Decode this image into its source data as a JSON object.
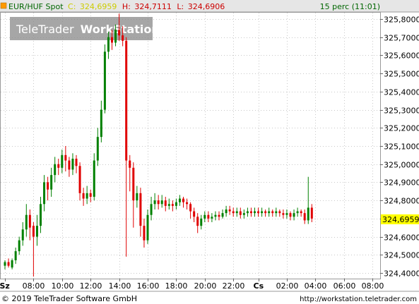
{
  "header": {
    "symbol": "EUR/HUF Spot",
    "close_label": "C:",
    "close_value": "324,6959",
    "high_label": "H:",
    "high_value": "324,7111",
    "low_label": "L:",
    "low_value": "324,6906",
    "interval": "15 perc (11:01)"
  },
  "watermark": "TeleTrader WorkStation",
  "watermark_brand": "TeleTrader",
  "watermark_product": "WorkStation",
  "footer": {
    "copyright": "© 2019 TeleTrader Software GmbH",
    "url": "http://workstation.teletrader.com"
  },
  "colors": {
    "up": "#008000",
    "down": "#e00000",
    "grid": "#c8c8c8",
    "price_tag_bg": "#ffff00",
    "header_bg": "#e6e6e6"
  },
  "chart_data": {
    "type": "candlestick",
    "ylim": [
      324.37,
      325.85
    ],
    "y_ticks": [
      "324,4000",
      "324,5000",
      "324,6000",
      "324,7000",
      "324,8000",
      "324,9000",
      "325,0000",
      "325,1000",
      "325,2000",
      "325,3000",
      "325,4000",
      "325,5000",
      "325,6000",
      "325,7000",
      "325,8000"
    ],
    "y_tick_values": [
      324.4,
      324.5,
      324.6,
      324.7,
      324.8,
      324.9,
      325.0,
      325.1,
      325.2,
      325.3,
      325.4,
      325.5,
      325.6,
      325.7,
      325.8
    ],
    "x_ticks": [
      "Sz",
      "08:00",
      "10:00",
      "12:00",
      "14:00",
      "16:00",
      "18:00",
      "20:00",
      "22:00",
      "Cs",
      "02:00",
      "04:00",
      "06:00",
      "08:00"
    ],
    "x_tick_index": [
      0,
      8,
      16,
      24,
      32,
      40,
      48,
      56,
      64,
      71,
      79,
      87,
      95,
      103
    ],
    "last_price": "324,6959",
    "last_price_value": 324.6959,
    "grid": true,
    "candles": [
      [
        324.44,
        324.46,
        324.42,
        324.47
      ],
      [
        324.46,
        324.44,
        324.43,
        324.48
      ],
      [
        324.43,
        324.47,
        324.42,
        324.48
      ],
      [
        324.47,
        324.52,
        324.45,
        324.54
      ],
      [
        324.52,
        324.58,
        324.5,
        324.6
      ],
      [
        324.58,
        324.64,
        324.55,
        324.68
      ],
      [
        324.64,
        324.72,
        324.6,
        324.78
      ],
      [
        324.72,
        324.65,
        324.58,
        324.75
      ],
      [
        324.66,
        324.6,
        324.38,
        324.68
      ],
      [
        324.6,
        324.66,
        324.55,
        324.72
      ],
      [
        324.66,
        324.78,
        324.62,
        324.82
      ],
      [
        324.78,
        324.9,
        324.74,
        324.94
      ],
      [
        324.9,
        324.86,
        324.8,
        324.93
      ],
      [
        324.86,
        324.94,
        324.82,
        324.98
      ],
      [
        324.94,
        325.0,
        324.9,
        325.04
      ],
      [
        325.0,
        324.98,
        324.94,
        325.03
      ],
      [
        324.98,
        325.05,
        324.95,
        325.08
      ],
      [
        325.05,
        325.02,
        324.96,
        325.1
      ],
      [
        325.02,
        324.97,
        324.93,
        325.04
      ],
      [
        324.97,
        325.03,
        324.94,
        325.06
      ],
      [
        325.03,
        324.99,
        324.95,
        325.05
      ],
      [
        324.99,
        324.84,
        324.8,
        325.01
      ],
      [
        324.84,
        324.81,
        324.77,
        324.87
      ],
      [
        324.81,
        324.84,
        324.78,
        324.88
      ],
      [
        324.84,
        324.82,
        324.79,
        324.86
      ],
      [
        324.82,
        325.02,
        324.8,
        325.06
      ],
      [
        325.02,
        325.15,
        324.99,
        325.2
      ],
      [
        325.15,
        325.3,
        325.12,
        325.35
      ],
      [
        325.3,
        325.62,
        325.28,
        325.66
      ],
      [
        325.62,
        325.7,
        325.58,
        325.73
      ],
      [
        325.7,
        325.67,
        325.63,
        325.74
      ],
      [
        325.67,
        325.74,
        325.65,
        325.77
      ],
      [
        325.74,
        325.71,
        325.68,
        325.83
      ],
      [
        325.71,
        325.68,
        325.65,
        325.76
      ],
      [
        325.68,
        325.02,
        324.49,
        325.7
      ],
      [
        325.02,
        324.98,
        324.85,
        325.05
      ],
      [
        324.98,
        324.8,
        324.65,
        325.01
      ],
      [
        324.8,
        324.84,
        324.76,
        324.88
      ],
      [
        324.84,
        324.66,
        324.6,
        324.87
      ],
      [
        324.66,
        324.58,
        324.54,
        324.7
      ],
      [
        324.58,
        324.72,
        324.56,
        324.75
      ],
      [
        324.72,
        324.78,
        324.69,
        324.82
      ],
      [
        324.78,
        324.8,
        324.75,
        324.84
      ],
      [
        324.8,
        324.78,
        324.75,
        324.83
      ],
      [
        324.78,
        324.8,
        324.76,
        324.83
      ],
      [
        324.8,
        324.77,
        324.74,
        324.82
      ],
      [
        324.77,
        324.78,
        324.75,
        324.81
      ],
      [
        324.78,
        324.77,
        324.74,
        324.8
      ],
      [
        324.77,
        324.79,
        324.75,
        324.81
      ],
      [
        324.79,
        324.81,
        324.77,
        324.83
      ],
      [
        324.81,
        324.79,
        324.76,
        324.82
      ],
      [
        324.79,
        324.78,
        324.75,
        324.81
      ],
      [
        324.78,
        324.74,
        324.7,
        324.79
      ],
      [
        324.74,
        324.71,
        324.68,
        324.76
      ],
      [
        324.71,
        324.66,
        324.62,
        324.73
      ],
      [
        324.66,
        324.7,
        324.64,
        324.72
      ],
      [
        324.7,
        324.72,
        324.68,
        324.74
      ],
      [
        324.72,
        324.7,
        324.68,
        324.74
      ],
      [
        324.7,
        324.71,
        324.68,
        324.73
      ],
      [
        324.71,
        324.72,
        324.69,
        324.74
      ],
      [
        324.72,
        324.71,
        324.69,
        324.74
      ],
      [
        324.71,
        324.73,
        324.7,
        324.75
      ],
      [
        324.73,
        324.75,
        324.71,
        324.77
      ],
      [
        324.75,
        324.74,
        324.72,
        324.77
      ],
      [
        324.74,
        324.73,
        324.71,
        324.76
      ],
      [
        324.73,
        324.74,
        324.71,
        324.76
      ],
      [
        324.74,
        324.72,
        324.7,
        324.76
      ],
      [
        324.72,
        324.73,
        324.7,
        324.75
      ],
      [
        324.73,
        324.74,
        324.71,
        324.76
      ],
      [
        324.74,
        324.73,
        324.71,
        324.76
      ],
      [
        324.73,
        324.74,
        324.71,
        324.76
      ],
      [
        324.74,
        324.73,
        324.71,
        324.76
      ],
      [
        324.73,
        324.74,
        324.71,
        324.76
      ],
      [
        324.74,
        324.73,
        324.71,
        324.75
      ],
      [
        324.73,
        324.74,
        324.71,
        324.76
      ],
      [
        324.74,
        324.73,
        324.71,
        324.75
      ],
      [
        324.73,
        324.74,
        324.71,
        324.76
      ],
      [
        324.74,
        324.73,
        324.71,
        324.75
      ],
      [
        324.73,
        324.72,
        324.7,
        324.75
      ],
      [
        324.72,
        324.73,
        324.7,
        324.75
      ],
      [
        324.73,
        324.71,
        324.69,
        324.74
      ],
      [
        324.71,
        324.73,
        324.69,
        324.75
      ],
      [
        324.73,
        324.74,
        324.71,
        324.76
      ],
      [
        324.74,
        324.73,
        324.71,
        324.75
      ],
      [
        324.73,
        324.69,
        324.67,
        324.75
      ],
      [
        324.69,
        324.76,
        324.67,
        324.93
      ],
      [
        324.76,
        324.7,
        324.68,
        324.78
      ]
    ]
  }
}
